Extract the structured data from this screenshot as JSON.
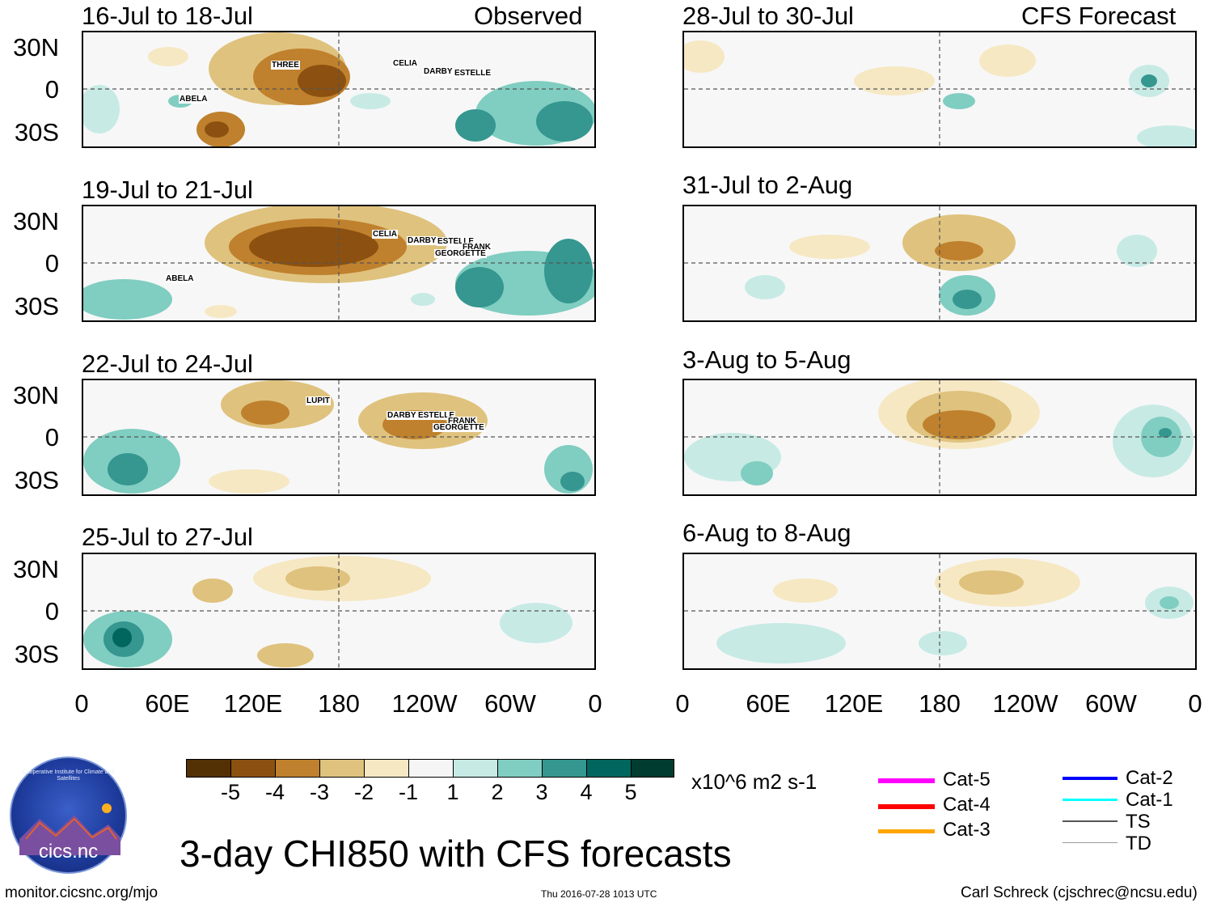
{
  "figure": {
    "title": "3-day CHI850 with CFS forecasts",
    "units": "x10^6 m2 s-1",
    "source_url": "monitor.cicsnc.org/mjo",
    "timestamp": "Thu 2016-07-28 1013 UTC",
    "credit": "Carl Schreck (cjschrec@ncsu.edu)",
    "logo_text": "cics.nc",
    "logo_ring_text": "Cooperative Institute for Climate and Satellites"
  },
  "columns": {
    "left_header": "Observed",
    "right_header": "CFS Forecast"
  },
  "panels": [
    {
      "period": "16-Jul to 18-Jul",
      "storms": [
        "ABELA",
        "THREE",
        "CELIA",
        "DARBY",
        "ESTELLE"
      ]
    },
    {
      "period": "19-Jul to 21-Jul",
      "storms": [
        "ABELA",
        "CELIA",
        "DARBY",
        "ESTELLE",
        "FRANK",
        "GEORGETTE"
      ]
    },
    {
      "period": "22-Jul to 24-Jul",
      "storms": [
        "LUPIT",
        "DARBY",
        "ESTELLE",
        "FRANK",
        "GEORGETTE"
      ]
    },
    {
      "period": "25-Jul to 27-Jul",
      "storms": []
    },
    {
      "period": "28-Jul to 30-Jul",
      "storms": []
    },
    {
      "period": "31-Jul to 2-Aug",
      "storms": []
    },
    {
      "period": "3-Aug to 5-Aug",
      "storms": []
    },
    {
      "period": "6-Aug to 8-Aug",
      "storms": []
    }
  ],
  "axes": {
    "lat_labels": [
      "30N",
      "0",
      "30S"
    ],
    "lon_labels": [
      "0",
      "60E",
      "120E",
      "180",
      "120W",
      "60W",
      "0"
    ]
  },
  "colorbar": {
    "labels": [
      "-5",
      "-4",
      "-3",
      "-2",
      "-1",
      "1",
      "2",
      "3",
      "4",
      "5"
    ],
    "colors": [
      "#543005",
      "#8c5110",
      "#bf812d",
      "#dfc27d",
      "#f6e8c3",
      "#f5f5f5",
      "#c7eae5",
      "#80cdc1",
      "#35978f",
      "#01665e",
      "#003c30"
    ]
  },
  "legend": [
    {
      "label": "Cat-5",
      "color": "#ff00ff"
    },
    {
      "label": "Cat-4",
      "color": "#ff0000"
    },
    {
      "label": "Cat-3",
      "color": "#ffa500"
    },
    {
      "label": "Cat-2",
      "color": "#0000ff"
    },
    {
      "label": "Cat-1",
      "color": "#00ffff"
    },
    {
      "label": "TS",
      "color": "#555555"
    },
    {
      "label": "TD",
      "color": "#999999"
    }
  ]
}
